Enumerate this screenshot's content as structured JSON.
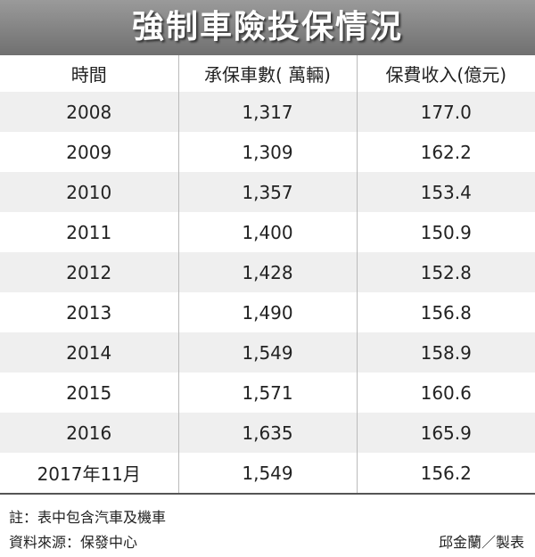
{
  "title": "強制車險投保情況",
  "table": {
    "columns": [
      "時間",
      "承保車數( 萬輛)",
      "保費收入(億元)"
    ],
    "rows": [
      [
        "2008",
        "1,317",
        "177.0"
      ],
      [
        "2009",
        "1,309",
        "162.2"
      ],
      [
        "2010",
        "1,357",
        "153.4"
      ],
      [
        "2011",
        "1,400",
        "150.9"
      ],
      [
        "2012",
        "1,428",
        "152.8"
      ],
      [
        "2013",
        "1,490",
        "156.8"
      ],
      [
        "2014",
        "1,549",
        "158.9"
      ],
      [
        "2015",
        "1,571",
        "160.6"
      ],
      [
        "2016",
        "1,635",
        "165.9"
      ],
      [
        "2017年11月",
        "1,549",
        "156.2"
      ]
    ]
  },
  "note": "註：表中包含汽車及機車",
  "source": "資料來源：保發中心",
  "credit": "邱金蘭／製表"
}
